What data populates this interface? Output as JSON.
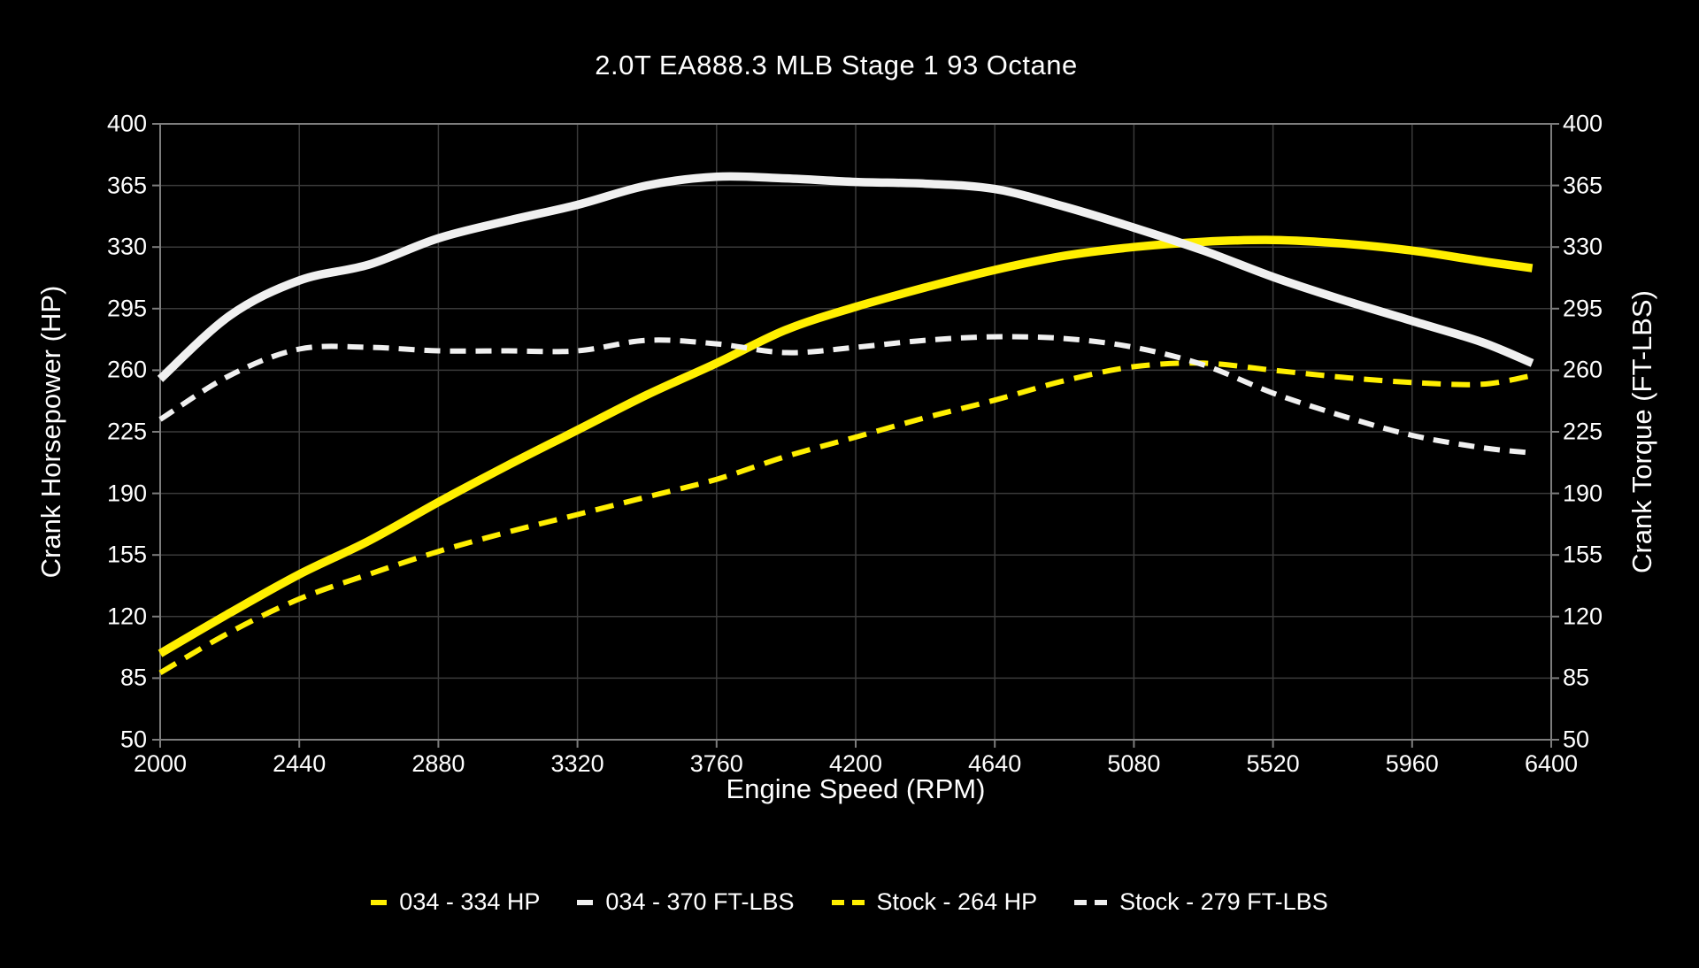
{
  "title": "2.0T EA888.3 MLB Stage 1 93 Octane",
  "chart_data": {
    "type": "line",
    "title": "2.0T EA888.3 MLB Stage 1 93 Octane",
    "xlabel": "Engine Speed (RPM)",
    "ylabel_left": "Crank Horsepower (HP)",
    "ylabel_right": "Crank Torque (FT-LBS)",
    "xlim": [
      2000,
      6400
    ],
    "ylim": [
      50,
      400
    ],
    "xticks": [
      2000,
      2440,
      2880,
      3320,
      3760,
      4200,
      4640,
      5080,
      5520,
      5960,
      6400
    ],
    "yticks": [
      50,
      85,
      120,
      155,
      190,
      225,
      260,
      295,
      330,
      365,
      400
    ],
    "grid": true,
    "legend_position": "bottom-center",
    "colors": {
      "background": "#000000",
      "text": "#ffffff",
      "gridline": "#3a3a3a",
      "axis": "#7d7d7d",
      "accent_yellow": "#ffef00",
      "accent_white": "#f0f0f0"
    },
    "x": [
      2000,
      2220,
      2440,
      2660,
      2880,
      3100,
      3320,
      3540,
      3760,
      3980,
      4200,
      4420,
      4640,
      4860,
      5080,
      5300,
      5520,
      5740,
      5960,
      6180,
      6340
    ],
    "series": [
      {
        "name": "034 - 334 HP",
        "color": "#ffef00",
        "dash": false,
        "values": [
          99,
          122,
          144,
          163,
          185,
          206,
          226,
          246,
          264,
          283,
          296,
          307,
          317,
          325,
          330,
          333,
          334,
          332,
          328,
          322,
          318
        ]
      },
      {
        "name": "034 - 370 FT-LBS",
        "color": "#f0f0f0",
        "dash": false,
        "values": [
          255,
          291,
          311,
          320,
          335,
          345,
          354,
          365,
          370,
          369,
          367,
          366,
          363,
          353,
          341,
          328,
          313,
          300,
          288,
          276,
          264
        ]
      },
      {
        "name": "Stock - 264 HP",
        "color": "#ffef00",
        "dash": true,
        "values": [
          88,
          111,
          130,
          144,
          157,
          168,
          178,
          188,
          198,
          211,
          222,
          233,
          243,
          254,
          262,
          264,
          260,
          256,
          253,
          252,
          257
        ]
      },
      {
        "name": "Stock - 279 FT-LBS",
        "color": "#f0f0f0",
        "dash": true,
        "values": [
          232,
          257,
          272,
          273,
          271,
          271,
          271,
          277,
          275,
          270,
          273,
          277,
          279,
          278,
          273,
          263,
          247,
          234,
          223,
          216,
          213
        ]
      }
    ]
  }
}
